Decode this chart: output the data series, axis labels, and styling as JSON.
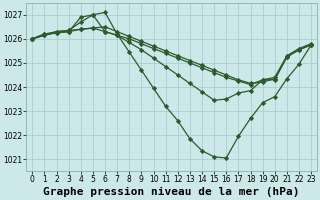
{
  "title": "Graphe pression niveau de la mer (hPa)",
  "background_color": "#cce8e8",
  "grid_color": "#aacfcf",
  "line_color": "#2d5a2d",
  "x_ticks": [
    0,
    1,
    2,
    3,
    4,
    5,
    6,
    7,
    8,
    9,
    10,
    11,
    12,
    13,
    14,
    15,
    16,
    17,
    18,
    19,
    20,
    21,
    22,
    23
  ],
  "ylim": [
    1020.5,
    1027.5
  ],
  "y_ticks": [
    1021,
    1022,
    1023,
    1024,
    1025,
    1026,
    1027
  ],
  "series": [
    {
      "x": [
        0,
        1,
        2,
        3,
        4,
        5,
        6,
        7,
        8,
        9,
        10,
        11,
        12,
        13,
        14,
        15,
        16,
        17,
        18,
        19,
        20,
        21,
        22,
        23
      ],
      "y": [
        1026.0,
        1026.15,
        1026.25,
        1026.3,
        1026.4,
        1026.45,
        1026.5,
        1026.3,
        1026.1,
        1025.9,
        1025.7,
        1025.5,
        1025.3,
        1025.1,
        1024.9,
        1024.7,
        1024.5,
        1024.3,
        1024.15,
        1024.2,
        1024.35,
        1025.25,
        1025.55,
        1025.75
      ]
    },
    {
      "x": [
        0,
        1,
        2,
        3,
        4,
        5,
        6,
        7,
        8,
        9,
        10,
        11,
        12,
        13,
        14,
        15,
        16,
        17,
        18,
        19,
        20,
        21,
        22,
        23
      ],
      "y": [
        1026.0,
        1026.15,
        1026.3,
        1026.35,
        1026.4,
        1026.45,
        1026.3,
        1026.15,
        1026.0,
        1025.8,
        1025.6,
        1025.4,
        1025.2,
        1025.0,
        1024.8,
        1024.6,
        1024.4,
        1024.25,
        1024.1,
        1024.3,
        1024.4,
        1025.3,
        1025.6,
        1025.8
      ]
    },
    {
      "x": [
        0,
        1,
        2,
        3,
        4,
        5,
        6,
        7,
        8,
        9,
        10,
        11,
        12,
        13,
        14,
        15,
        16,
        17,
        18,
        19,
        20,
        21,
        22,
        23
      ],
      "y": [
        1026.0,
        1026.2,
        1026.3,
        1026.35,
        1026.7,
        1027.0,
        1026.3,
        1026.15,
        1025.85,
        1025.55,
        1025.2,
        1024.85,
        1024.5,
        1024.15,
        1023.8,
        1023.45,
        1023.5,
        1023.75,
        1023.85,
        1024.3,
        1024.3,
        1025.25,
        1025.55,
        1025.75
      ]
    },
    {
      "x": [
        0,
        1,
        2,
        3,
        4,
        5,
        6,
        7,
        8,
        9,
        10,
        11,
        12,
        13,
        14,
        15,
        16,
        17,
        18,
        19,
        20,
        21,
        22,
        23
      ],
      "y": [
        1026.0,
        1026.2,
        1026.25,
        1026.3,
        1026.9,
        1027.0,
        1027.1,
        1026.2,
        1025.45,
        1024.7,
        1023.95,
        1023.2,
        1022.6,
        1021.85,
        1021.35,
        1021.1,
        1021.05,
        1021.95,
        1022.7,
        1023.35,
        1023.6,
        1024.35,
        1024.95,
        1025.75
      ]
    }
  ],
  "marker": "D",
  "markersize": 2.2,
  "linewidth": 0.9,
  "title_fontsize": 8,
  "tick_fontsize": 5.5
}
